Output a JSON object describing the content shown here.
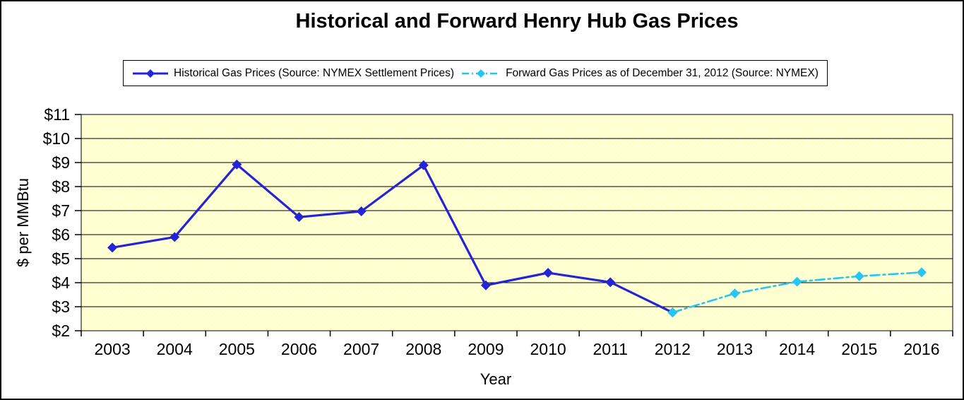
{
  "chart_data": {
    "type": "line",
    "title": "Historical and Forward Henry Hub Gas Prices",
    "xlabel": "Year",
    "ylabel": "$ per MMBtu",
    "categories": [
      "2003",
      "2004",
      "2005",
      "2006",
      "2007",
      "2008",
      "2009",
      "2010",
      "2011",
      "2012",
      "2013",
      "2014",
      "2015",
      "2016"
    ],
    "ylim": [
      2,
      11
    ],
    "ytick_labels": [
      "$2",
      "$3",
      "$4",
      "$5",
      "$6",
      "$7",
      "$8",
      "$9",
      "$10",
      "$11"
    ],
    "grid": "horizontal",
    "legend_position": "top-center",
    "plot_bg_color": "#FFFFCC",
    "grid_color": "#000000",
    "series": [
      {
        "name": "Historical Gas Prices (Source: NYMEX Settlement Prices)",
        "color": "#2424D6",
        "line_style": "solid",
        "marker": "diamond",
        "x": [
          "2003",
          "2004",
          "2005",
          "2006",
          "2007",
          "2008",
          "2009",
          "2010",
          "2011",
          "2012"
        ],
        "values": [
          5.46,
          5.9,
          8.92,
          6.73,
          6.97,
          8.89,
          3.89,
          4.41,
          4.02,
          2.76
        ]
      },
      {
        "name": "Forward Gas Prices as of December 31, 2012 (Source: NYMEX)",
        "color": "#29C5F2",
        "line_style": "dash-dot",
        "marker": "diamond",
        "x": [
          "2012",
          "2013",
          "2014",
          "2015",
          "2016"
        ],
        "values": [
          2.76,
          3.55,
          4.04,
          4.27,
          4.43
        ]
      }
    ]
  }
}
